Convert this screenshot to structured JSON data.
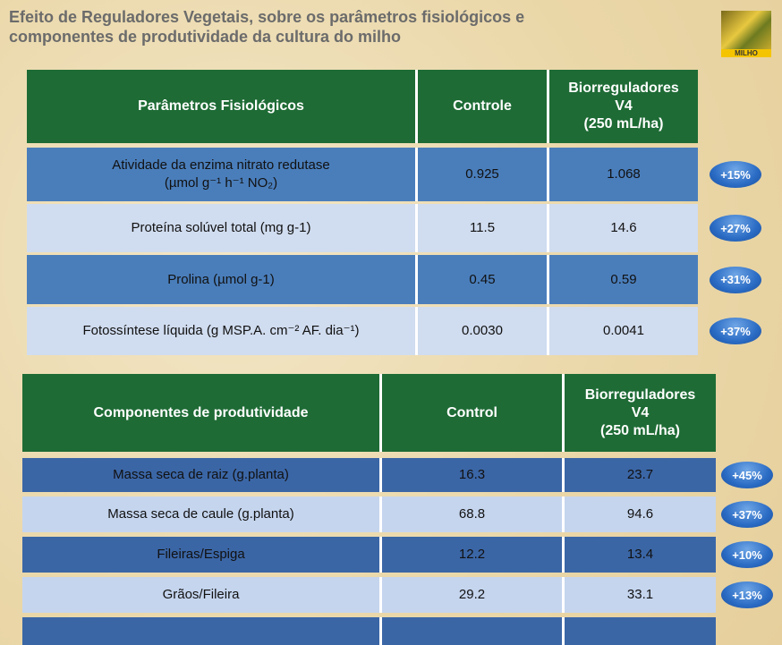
{
  "header": {
    "title": "Efeito de Reguladores Vegetais, sobre os parâmetros fisiológicos e\ncomponentes de produtividade da cultura do milho",
    "logo_label": "MILHO"
  },
  "table1": {
    "columns": [
      "Parâmetros Fisiológicos",
      "Controle",
      "Biorreguladores\nV4\n(250 mL/ha)"
    ],
    "rows": [
      [
        "Atividade da enzima nitrato redutase\n(µmol g⁻¹ h⁻¹ NO₂)",
        "0.925",
        "1.068",
        "+15%"
      ],
      [
        "Proteína solúvel total (mg g-1)",
        "11.5",
        "14.6",
        "+27%"
      ],
      [
        "Prolina (µmol g-1)",
        "0.45",
        "0.59",
        "+31%"
      ],
      [
        "Fotossíntese líquida (g MSP.A. cm⁻² AF. dia⁻¹)",
        "0.0030",
        "0.0041",
        "+37%"
      ]
    ]
  },
  "table2": {
    "columns": [
      "Componentes de produtividade",
      "Control",
      "Biorreguladores\nV4\n(250 mL/ha)"
    ],
    "rows": [
      [
        "Massa seca de raiz (g.planta)",
        "16.3",
        "23.7",
        "+45%"
      ],
      [
        "Massa seca de caule (g.planta)",
        "68.8",
        "94.6",
        "+37%"
      ],
      [
        "Fileiras/Espiga",
        "12.2",
        "13.4",
        "+10%"
      ],
      [
        "Grãos/Fileira",
        "29.2",
        "33.1",
        "+13%"
      ]
    ]
  }
}
